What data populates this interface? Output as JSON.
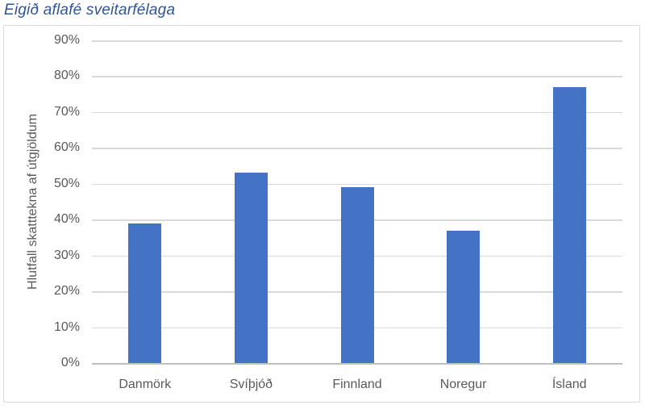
{
  "chart_data": {
    "type": "bar",
    "title": "Eigið aflafé sveitarfélaga",
    "ylabel": "Hlutfall skatttekna af útgjöldum",
    "xlabel": "",
    "categories": [
      "Danmörk",
      "Svíþjóð",
      "Finnland",
      "Noregur",
      "Ísland"
    ],
    "values": [
      39,
      53,
      49,
      37,
      77
    ],
    "ylim": [
      0,
      90
    ],
    "ytick_values": [
      0,
      10,
      20,
      30,
      40,
      50,
      60,
      70,
      80,
      90
    ],
    "ytick_labels": [
      "0%",
      "10%",
      "20%",
      "30%",
      "40%",
      "50%",
      "60%",
      "70%",
      "80%",
      "90%"
    ],
    "grid": true,
    "legend_position": "none",
    "colors": {
      "bar": "#4472C4",
      "gridline": "#D9D9D9",
      "axis_line": "#BFBFBF",
      "tick_text": "#595959",
      "category_text": "#595959",
      "axis_title_text": "#595959",
      "chart_title_text": "#2F5496",
      "frame_border": "#D9D9D9",
      "background": "#FFFFFF"
    }
  }
}
